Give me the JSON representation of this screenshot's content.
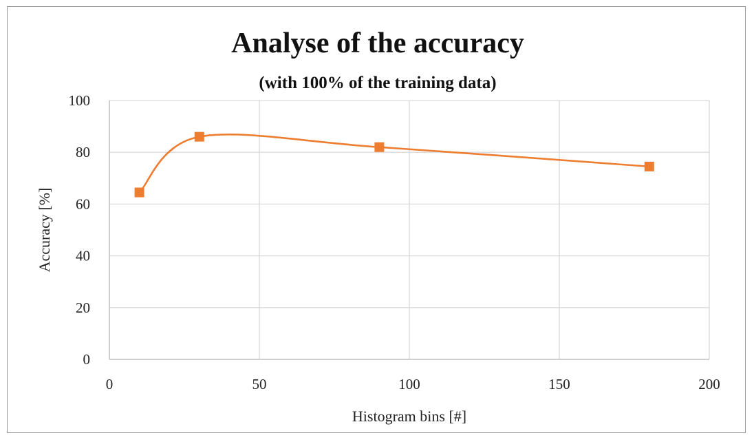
{
  "chart_data": {
    "type": "line",
    "title": "Analyse of the accuracy",
    "subtitle": "(with 100% of the training data)",
    "xlabel": "Histogram bins [#]",
    "ylabel": "Accuracy [%]",
    "xlim": [
      0,
      200
    ],
    "ylim": [
      0,
      100
    ],
    "x_ticks": [
      0,
      50,
      100,
      150,
      200
    ],
    "y_ticks": [
      0,
      20,
      40,
      60,
      80,
      100
    ],
    "grid": true,
    "smoothed": true,
    "marker": "square",
    "legend": "none",
    "series": [
      {
        "color": "#ED7D31",
        "x": [
          10,
          30,
          90,
          180
        ],
        "y": [
          64.5,
          86,
          82,
          74.5
        ]
      }
    ]
  }
}
